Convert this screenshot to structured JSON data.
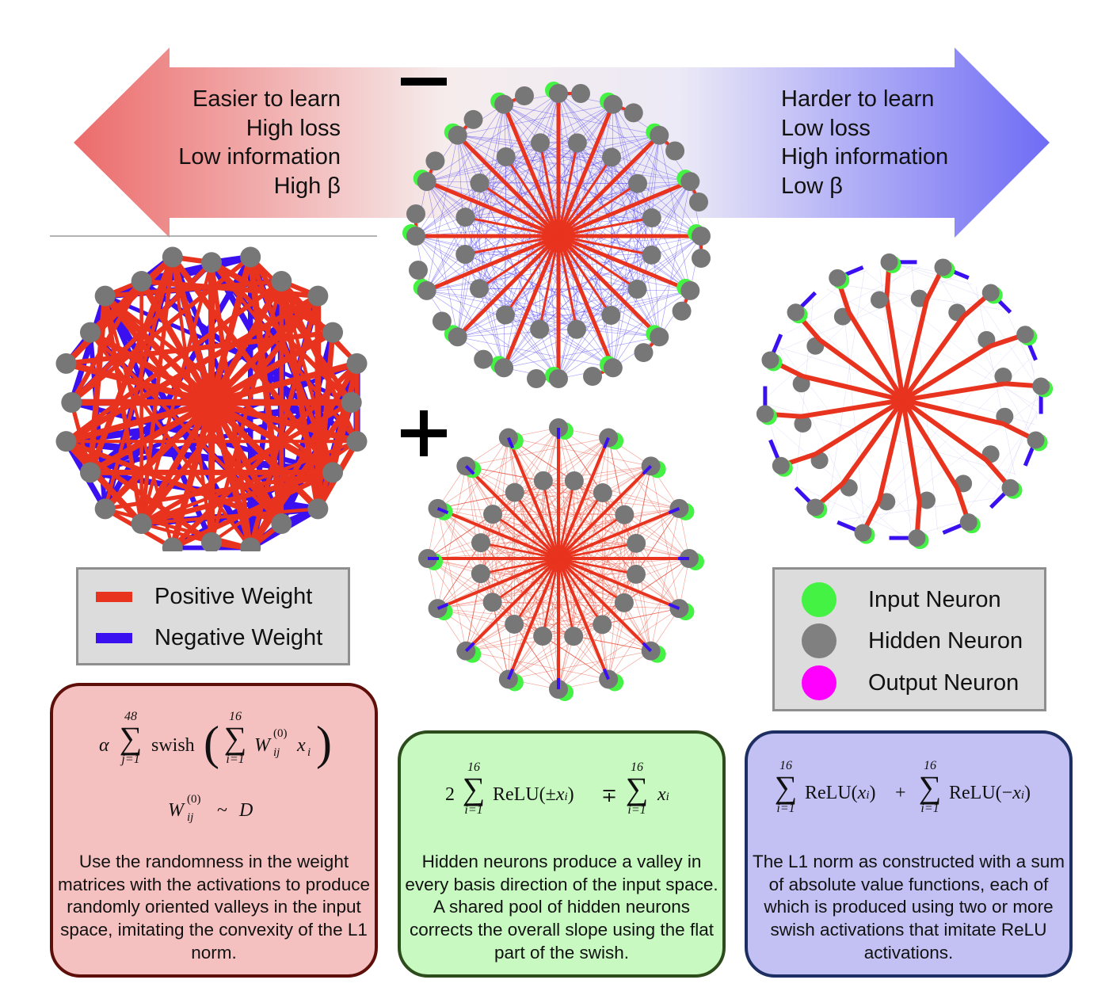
{
  "arrow": {
    "left_lines": [
      "Easier to learn",
      "High loss",
      "Low information",
      "High β"
    ],
    "right_lines": [
      "Harder to learn",
      "Low loss",
      "High information",
      "Low β"
    ],
    "left_color": "#ec6b6b",
    "right_color": "#6f6cf5"
  },
  "signs": {
    "minus": "−",
    "plus": "+"
  },
  "weight_legend": {
    "items": [
      {
        "label": "Positive Weight",
        "color": "#e8331e"
      },
      {
        "label": "Negative Weight",
        "color": "#3a10f0"
      }
    ]
  },
  "neuron_legend": {
    "items": [
      {
        "label": "Input Neuron",
        "color": "#44f244"
      },
      {
        "label": "Hidden Neuron",
        "color": "#808080"
      },
      {
        "label": "Output Neuron",
        "color": "#ff00ff"
      }
    ]
  },
  "boxes": {
    "left": {
      "formula_main": "α Σ_{j=1}^{48} swish( Σ_{i=1}^{16} W_{ij}^{(0)} x_i )",
      "formula_dist": "W_{ij}^{(0)} ~ D",
      "sum_outer_top": "48",
      "sum_outer_bottom": "j=1",
      "sum_inner_top": "16",
      "sum_inner_bottom": "i=1",
      "alpha": "α",
      "swish": "swish",
      "w": "W",
      "w_sub": "ij",
      "w_sup": "(0)",
      "x": "x",
      "x_sub": "i",
      "dist_tilde": "~",
      "dist_d": "D",
      "description": "Use the randomness in the weight matrices with the activations to produce randomly oriented valleys in the input space, imitating the convexity of the L1 norm.",
      "background": "#f5c1c0"
    },
    "mid": {
      "formula": "2 Σ_{i=1}^{16} ReLU(±x_i) ∓ Σ_{i=1}^{16} x_i",
      "coef": "2",
      "sum_top": "16",
      "sum_bottom": "i=1",
      "relu_arg": "ReLU(±",
      "mp": "∓",
      "description": "Hidden neurons produce a valley in every basis direction of the input space. A shared pool of hidden neurons corrects the overall slope using the flat part of the swish.",
      "background": "#c7f9c0"
    },
    "right": {
      "formula": "Σ_{i=1}^{16} ReLU(x_i) + Σ_{i=1}^{16} ReLU(−x_i)",
      "sum_top": "16",
      "sum_bottom": "i=1",
      "relu": "ReLU(",
      "plus": "+",
      "neg": "−",
      "description": "The L1 norm as constructed with a sum of absolute value functions, each of which is produced using two or more swish activations that imitate ReLU activations.",
      "background": "#c3c1f3"
    }
  },
  "graphs": {
    "left_network": {
      "positive_color": "#e8331e",
      "negative_color": "#3a10f0",
      "node_color": "#777777"
    },
    "top_network": {
      "edge_color": "#4a3cf0",
      "hub_color": "#e8331e",
      "input_color": "#44f244",
      "hidden_color": "#777777"
    },
    "bottom_network": {
      "edge_color": "#e8331e",
      "pair_color": "#3a10f0",
      "input_color": "#44f244",
      "hidden_color": "#777777"
    },
    "right_network": {
      "edge_color": "#e8331e",
      "pair_color": "#3a10f0",
      "input_color": "#44f244",
      "hidden_color": "#777777"
    }
  }
}
